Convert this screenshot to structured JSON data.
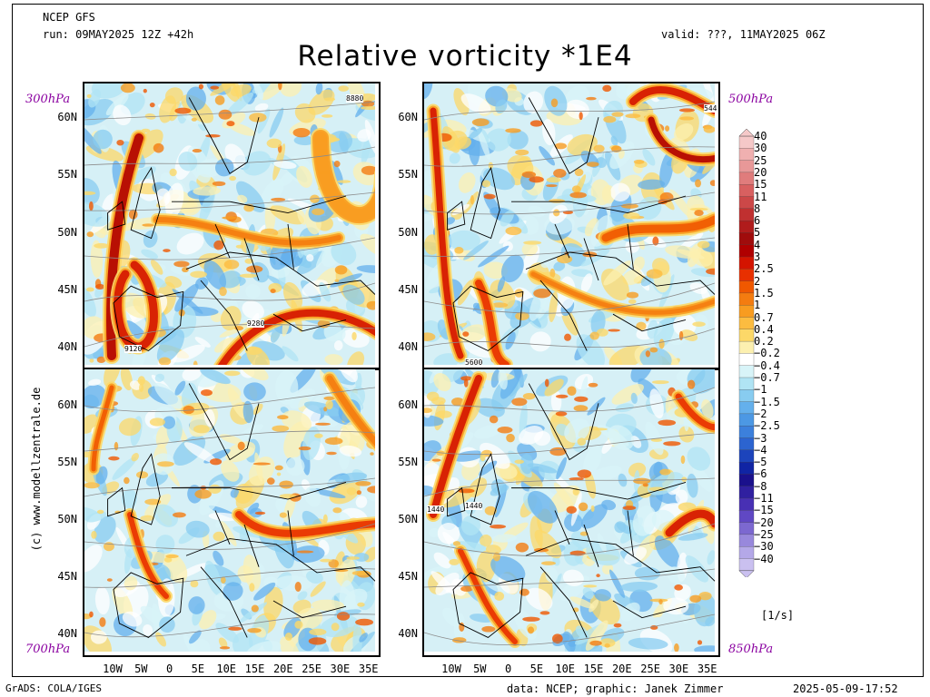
{
  "header": {
    "model": "NCEP GFS",
    "run": "run: 09MAY2025 12Z +42h",
    "valid": "valid: ???, 11MAY2025 06Z",
    "title": "Relative vorticity *1E4"
  },
  "panels": [
    {
      "level": "300hPa",
      "contours": [
        "8880",
        "9280",
        "9120"
      ]
    },
    {
      "level": "500hPa",
      "contours": [
        "544",
        "5600"
      ]
    },
    {
      "level": "700hPa",
      "contours": []
    },
    {
      "level": "850hPa",
      "contours": [
        "1440",
        "1440"
      ]
    }
  ],
  "lat_labels": [
    "60N",
    "55N",
    "50N",
    "45N",
    "40N"
  ],
  "lon_labels": [
    "10W",
    "5W",
    "0",
    "5E",
    "10E",
    "15E",
    "20E",
    "25E",
    "30E",
    "35E"
  ],
  "colorbar": {
    "unit": "[1/s]",
    "levels": [
      "40",
      "30",
      "25",
      "20",
      "15",
      "11",
      "8",
      "6",
      "5",
      "4",
      "3",
      "2.5",
      "2",
      "1.5",
      "1",
      "0.7",
      "0.4",
      "0.2",
      "−0.2",
      "−0.4",
      "−0.7",
      "−1",
      "−1.5",
      "−2",
      "−2.5",
      "−3",
      "−4",
      "−5",
      "−6",
      "−8",
      "−11",
      "−15",
      "−20",
      "−25",
      "−30",
      "−40"
    ],
    "colors": [
      "#f5c8c8",
      "#f0b0b0",
      "#e89898",
      "#e07c7c",
      "#d86060",
      "#cc4848",
      "#c03030",
      "#b01c1c",
      "#a00c0c",
      "#b00000",
      "#d41400",
      "#e83000",
      "#f05800",
      "#f47c10",
      "#f89c20",
      "#fcbc40",
      "#fcd868",
      "#fcf0b0",
      "#ffffff",
      "#d8f4f8",
      "#b0e4f4",
      "#88ccf0",
      "#64b0ec",
      "#4c98e4",
      "#3c80dc",
      "#2c64d0",
      "#1c44bc",
      "#1024a4",
      "#1a108c",
      "#3020a0",
      "#4830b4",
      "#6048c4",
      "#7c68d0",
      "#9888dc",
      "#b4a8e8",
      "#cac0f0"
    ]
  },
  "watermark": "(c) www.modellzentrale.de",
  "footer": {
    "left": "GrADS: COLA/IGES",
    "data": "data: NCEP; graphic: Janek Zimmer",
    "time": "2025-05-09-17:52"
  }
}
